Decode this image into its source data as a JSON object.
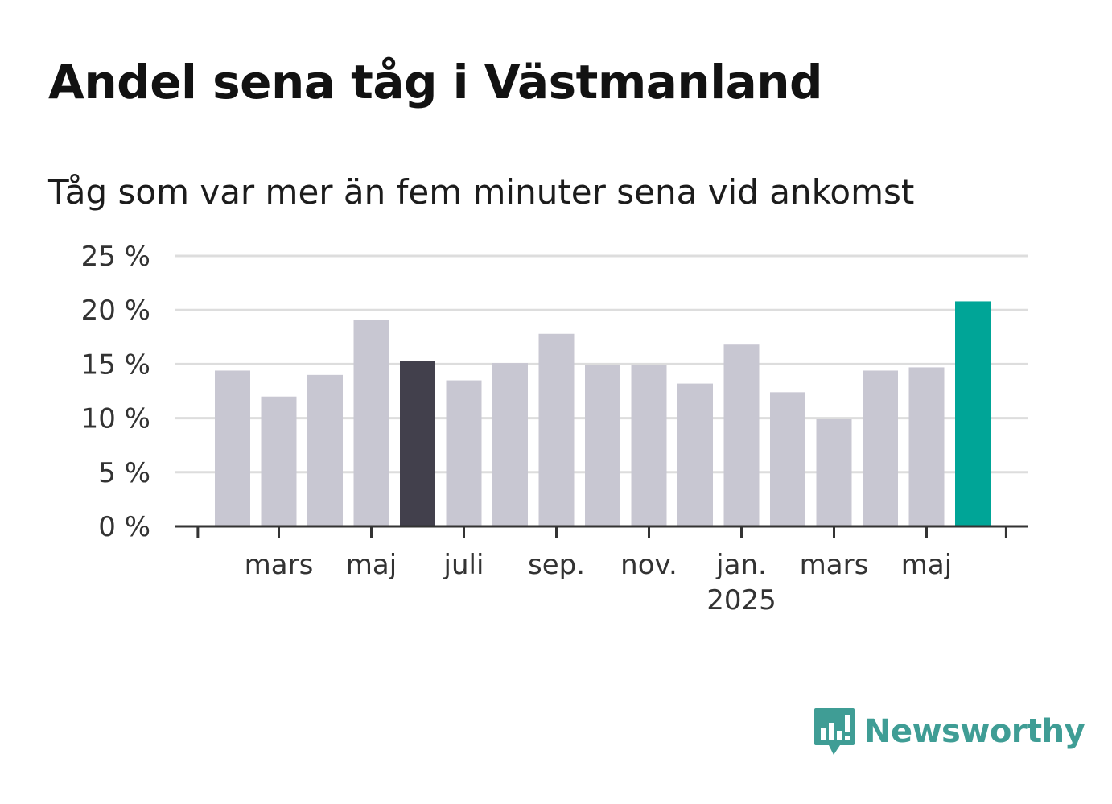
{
  "title": "Andel sena tåg i Västmanland",
  "subtitle": "Tåg som var mer än fem minuter sena vid ankomst",
  "logo": {
    "text": "Newsworthy",
    "icon": "newsworthy-logo-icon",
    "color": "#3f9d95"
  },
  "colors": {
    "default_bar": "#c8c7d2",
    "highlight_bar": "#42404c",
    "latest_bar": "#00a597",
    "grid": "#dddddd",
    "axis": "#333333"
  },
  "chart_data": {
    "type": "bar",
    "categories": [
      "2024-02",
      "2024-03",
      "2024-04",
      "2024-05",
      "2024-06",
      "2024-07",
      "2024-08",
      "2024-09",
      "2024-10",
      "2024-11",
      "2024-12",
      "2025-01",
      "2025-02",
      "2025-03",
      "2025-04",
      "2025-05",
      "2025-06"
    ],
    "values": [
      14.4,
      12.0,
      14.0,
      19.1,
      15.3,
      13.5,
      15.1,
      17.8,
      14.9,
      14.9,
      13.2,
      16.8,
      12.4,
      9.9,
      14.4,
      14.7,
      20.8
    ],
    "highlight_index": 4,
    "latest_index": 16,
    "ylim": [
      0,
      25
    ],
    "yticks": [
      0,
      5,
      10,
      15,
      20,
      25
    ],
    "ytick_labels": [
      "0 %",
      "5 %",
      "10 %",
      "15 %",
      "20 %",
      "25 %"
    ],
    "xticks": [
      {
        "label": "mars",
        "year": "",
        "index": 1
      },
      {
        "label": "maj",
        "year": "",
        "index": 3
      },
      {
        "label": "juli",
        "year": "",
        "index": 5
      },
      {
        "label": "sep.",
        "year": "",
        "index": 7
      },
      {
        "label": "nov.",
        "year": "",
        "index": 9
      },
      {
        "label": "jan.",
        "year": "2025",
        "index": 11
      },
      {
        "label": "mars",
        "year": "",
        "index": 13
      },
      {
        "label": "maj",
        "year": "",
        "index": 15
      }
    ],
    "grid": true,
    "xlabel": "",
    "ylabel": ""
  }
}
